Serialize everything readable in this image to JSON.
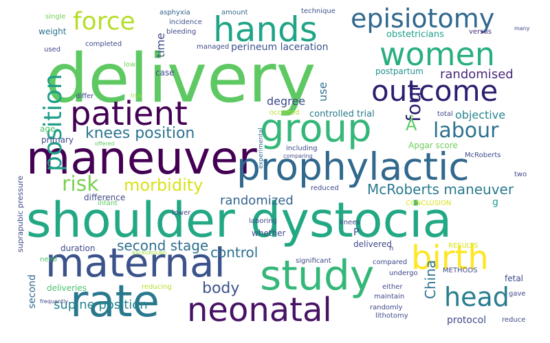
{
  "words": [
    {
      "text": "delivery",
      "color": "#5ec962"
    },
    {
      "text": "shoulder dystocia",
      "color": "#22a884"
    },
    {
      "text": "maneuver",
      "color": "#440154"
    },
    {
      "text": "maternal",
      "color": "#3b528b"
    },
    {
      "text": "prophylactic",
      "color": "#31688e"
    },
    {
      "text": "rate",
      "color": "#2a788e"
    },
    {
      "text": "study",
      "color": "#35b779"
    },
    {
      "text": "neonatal",
      "color": "#471365"
    },
    {
      "text": "women",
      "color": "#29af7f"
    },
    {
      "text": "group",
      "color": "#35b779"
    },
    {
      "text": "patient",
      "color": "#440154"
    },
    {
      "text": "hands",
      "color": "#20a486"
    },
    {
      "text": "outcome",
      "color": "#2d1e6f"
    },
    {
      "text": "birth",
      "color": "#fde725"
    },
    {
      "text": "episiotomy",
      "color": "#31688e"
    },
    {
      "text": "force",
      "color": "#b5de2b"
    },
    {
      "text": "head",
      "color": "#287d8e"
    },
    {
      "text": "labour",
      "color": "#2c728e"
    },
    {
      "text": "position",
      "color": "#1f9e89"
    },
    {
      "text": "knees position",
      "color": "#2c728e"
    },
    {
      "text": "risk",
      "color": "#7ad151"
    },
    {
      "text": "morbidity",
      "color": "#d8e219"
    },
    {
      "text": "McRoberts maneuver",
      "color": "#2a788e"
    },
    {
      "text": "randomized",
      "color": "#33638d"
    },
    {
      "text": "second stage",
      "color": "#2e6e8e"
    },
    {
      "text": "control",
      "color": "#2d708e"
    },
    {
      "text": "body",
      "color": "#3b528b"
    },
    {
      "text": "four",
      "color": "#2d1e6f"
    },
    {
      "text": "China",
      "color": "#2c728e"
    },
    {
      "text": "supine position",
      "color": "#25858e"
    },
    {
      "text": "randomised",
      "color": "#482878"
    },
    {
      "text": "objective",
      "color": "#25858e"
    },
    {
      "text": "perineum laceration",
      "color": "#3b528b"
    },
    {
      "text": "degree",
      "color": "#3e4989"
    },
    {
      "text": "use",
      "color": "#2e6e8e"
    },
    {
      "text": "controlled trial",
      "color": "#2a788e"
    },
    {
      "text": "postpartum",
      "color": "#21918c"
    },
    {
      "text": "Apgar score",
      "color": "#6ece58"
    },
    {
      "text": "Â",
      "color": "#5ec962"
    },
    {
      "text": "time",
      "color": "#3e4989"
    },
    {
      "text": "obstetricians",
      "color": "#1f9e89"
    },
    {
      "text": "weight",
      "color": "#2d708e"
    },
    {
      "text": "completed",
      "color": "#3e4989"
    },
    {
      "text": "used",
      "color": "#3e4989"
    },
    {
      "text": "single",
      "color": "#73d056"
    },
    {
      "text": "asphyxia",
      "color": "#33638d"
    },
    {
      "text": "amount",
      "color": "#31688e"
    },
    {
      "text": "technique",
      "color": "#3b528b"
    },
    {
      "text": "versus",
      "color": "#482878"
    },
    {
      "text": "many",
      "color": "#3e4989"
    },
    {
      "text": "incidence",
      "color": "#3b528b"
    },
    {
      "text": "bleeding",
      "color": "#3e4989"
    },
    {
      "text": "managed",
      "color": "#3e4989"
    },
    {
      "text": "case",
      "color": "#3e4989"
    },
    {
      "text": "low",
      "color": "#7ad151"
    },
    {
      "text": "trial",
      "color": "#a0da39"
    },
    {
      "text": "differ",
      "color": "#3e4989"
    },
    {
      "text": "occurred",
      "color": "#b5de2b"
    },
    {
      "text": "total",
      "color": "#3e4989"
    },
    {
      "text": "age",
      "color": "#4ac16d"
    },
    {
      "text": "primary",
      "color": "#3e4989"
    },
    {
      "text": "offered",
      "color": "#5ec962"
    },
    {
      "text": "difference",
      "color": "#3e4989"
    },
    {
      "text": "infant",
      "color": "#5ec962"
    },
    {
      "text": "including",
      "color": "#3e4989"
    },
    {
      "text": "comparing",
      "color": "#3e4989"
    },
    {
      "text": "McRoberts",
      "color": "#3e4989"
    },
    {
      "text": "reduced",
      "color": "#3e4989"
    },
    {
      "text": "lower",
      "color": "#3e4989"
    },
    {
      "text": "CONCLUSION",
      "color": "#d8e219"
    },
    {
      "text": "laboring",
      "color": "#3e4989"
    },
    {
      "text": "knees",
      "color": "#3e4989"
    },
    {
      "text": "g",
      "color": "#1f9e89"
    },
    {
      "text": "duration",
      "color": "#3e4989"
    },
    {
      "text": "whether",
      "color": "#3e4989"
    },
    {
      "text": "P",
      "color": "#3e4989"
    },
    {
      "text": "n",
      "color": "#3e4989"
    },
    {
      "text": "delivered",
      "color": "#3e4989"
    },
    {
      "text": "RESULTS",
      "color": "#d8e219"
    },
    {
      "text": "BACKGROUND",
      "color": "#a0da39"
    },
    {
      "text": "need",
      "color": "#4ac16d"
    },
    {
      "text": "significant",
      "color": "#3e4989"
    },
    {
      "text": "compared",
      "color": "#3e4989"
    },
    {
      "text": "undergo",
      "color": "#3e4989"
    },
    {
      "text": "METHODS",
      "color": "#3e4989"
    },
    {
      "text": "fetal",
      "color": "#3e4989"
    },
    {
      "text": "deliveries",
      "color": "#4ac16d"
    },
    {
      "text": "reducing",
      "color": "#b5de2b"
    },
    {
      "text": "either",
      "color": "#3e4989"
    },
    {
      "text": "maintain",
      "color": "#3e4989"
    },
    {
      "text": "gave",
      "color": "#3e4989"
    },
    {
      "text": "frequently",
      "color": "#3e4989"
    },
    {
      "text": "randomly",
      "color": "#3e4989"
    },
    {
      "text": "lithotomy",
      "color": "#3e4989"
    },
    {
      "text": "protocol",
      "color": "#3e4989"
    },
    {
      "text": "reduce",
      "color": "#3e4989"
    },
    {
      "text": "second",
      "color": "#31688e"
    },
    {
      "text": "suprapubic pressure",
      "color": "#3e4989"
    },
    {
      "text": "experimental",
      "color": "#2e6e8e"
    },
    {
      "text": "two",
      "color": "#3e4989"
    }
  ]
}
